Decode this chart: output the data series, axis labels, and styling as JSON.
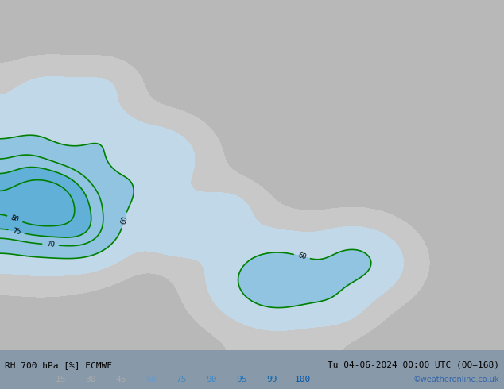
{
  "title_left": "RH 700 hPa [%] ECMWF",
  "title_right": "Tu 04-06-2024 00:00 UTC (00+168)",
  "credit": "©weatheronline.co.uk",
  "colorbar_labels": [
    "15",
    "30",
    "45",
    "60",
    "75",
    "90",
    "95",
    "99",
    "100"
  ],
  "colorbar_levels": [
    15,
    30,
    45,
    60,
    75,
    90,
    95,
    99,
    100
  ],
  "colors": [
    "#c8c8c8",
    "#b0b0b0",
    "#c8d8e8",
    "#a0c4e0",
    "#78b0d8",
    "#50a0d0",
    "#2890c8",
    "#1080c0",
    "#0070b8"
  ],
  "bg_color": "#b0b8c0",
  "fig_width": 6.34,
  "fig_height": 4.9,
  "dpi": 100
}
